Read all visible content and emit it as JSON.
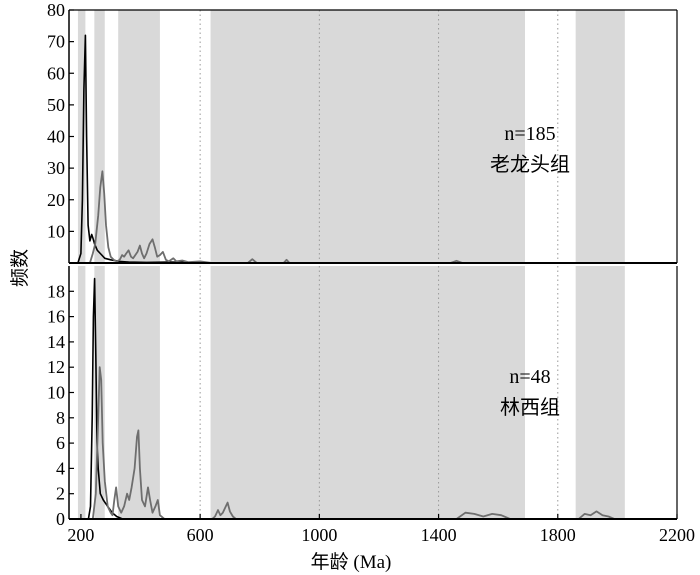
{
  "chart_data": {
    "type": "line",
    "xlabel": "年龄 (Ma)",
    "ylabel": "频数",
    "xlim": [
      160,
      2200
    ],
    "x_ticks": [
      200,
      600,
      1000,
      1400,
      1800,
      2200
    ],
    "grid": "vertical dotted lines at 600, 1000, 1400, 1800",
    "shaded_age_bands": [
      [
        190,
        215
      ],
      [
        245,
        280
      ],
      [
        325,
        465
      ],
      [
        635,
        1690
      ],
      [
        1860,
        2025
      ]
    ],
    "panels": [
      {
        "name": "top",
        "annotation_lines": [
          "n=185",
          "老龙头组"
        ],
        "ylim": [
          0,
          80
        ],
        "y_ticks": [
          10,
          20,
          30,
          40,
          50,
          60,
          70,
          80
        ],
        "series": [
          {
            "style": "black",
            "points": [
              [
                175,
                0
              ],
              [
                190,
                0
              ],
              [
                200,
                3
              ],
              [
                205,
                20
              ],
              [
                210,
                55
              ],
              [
                215,
                72
              ],
              [
                219,
                40
              ],
              [
                224,
                12
              ],
              [
                230,
                7
              ],
              [
                236,
                9
              ],
              [
                240,
                8
              ],
              [
                246,
                6
              ],
              [
                255,
                4
              ],
              [
                265,
                3
              ],
              [
                280,
                1.5
              ],
              [
                300,
                1
              ],
              [
                330,
                0.5
              ],
              [
                360,
                0.3
              ],
              [
                420,
                0.2
              ],
              [
                500,
                0.3
              ],
              [
                560,
                0.2
              ],
              [
                600,
                0.2
              ],
              [
                640,
                0
              ],
              [
                2200,
                0
              ]
            ]
          },
          {
            "style": "gray",
            "points": [
              [
                230,
                0
              ],
              [
                240,
                3
              ],
              [
                248,
                6
              ],
              [
                258,
                15
              ],
              [
                265,
                24
              ],
              [
                272,
                29
              ],
              [
                278,
                22
              ],
              [
                284,
                12
              ],
              [
                292,
                5
              ],
              [
                300,
                2
              ],
              [
                310,
                1
              ],
              [
                320,
                0.5
              ],
              [
                330,
                1
              ],
              [
                338,
                2.5
              ],
              [
                345,
                2
              ],
              [
                352,
                3
              ],
              [
                360,
                4
              ],
              [
                368,
                2
              ],
              [
                375,
                1.5
              ],
              [
                390,
                3.5
              ],
              [
                398,
                5.5
              ],
              [
                405,
                3
              ],
              [
                412,
                1.5
              ],
              [
                420,
                3
              ],
              [
                430,
                6
              ],
              [
                440,
                7.5
              ],
              [
                448,
                5
              ],
              [
                456,
                2
              ],
              [
                465,
                2.5
              ],
              [
                475,
                3.5
              ],
              [
                485,
                1
              ],
              [
                495,
                0.5
              ],
              [
                510,
                1.5
              ],
              [
                520,
                0.5
              ],
              [
                540,
                0.8
              ],
              [
                560,
                0.3
              ],
              [
                600,
                0.5
              ],
              [
                640,
                0
              ],
              [
                760,
                0
              ],
              [
                775,
                1.2
              ],
              [
                790,
                0
              ],
              [
                880,
                0
              ],
              [
                890,
                1
              ],
              [
                900,
                0
              ],
              [
                1440,
                0
              ],
              [
                1460,
                0.7
              ],
              [
                1480,
                0
              ],
              [
                2200,
                0
              ]
            ]
          }
        ]
      },
      {
        "name": "bottom",
        "annotation_lines": [
          "n=48",
          "林西组"
        ],
        "ylim": [
          0,
          20
        ],
        "y_ticks": [
          0,
          2,
          4,
          6,
          8,
          10,
          12,
          14,
          16,
          18
        ],
        "series": [
          {
            "style": "black",
            "points": [
              [
                175,
                0
              ],
              [
                225,
                0
              ],
              [
                232,
                1
              ],
              [
                238,
                8
              ],
              [
                242,
                16
              ],
              [
                246,
                19
              ],
              [
                250,
                13
              ],
              [
                254,
                6
              ],
              [
                258,
                4
              ],
              [
                265,
                2
              ],
              [
                275,
                1.5
              ],
              [
                290,
                1
              ],
              [
                305,
                0.5
              ],
              [
                320,
                0.2
              ],
              [
                340,
                0
              ],
              [
                2200,
                0
              ]
            ]
          },
          {
            "style": "gray",
            "points": [
              [
                240,
                0
              ],
              [
                250,
                2
              ],
              [
                258,
                8
              ],
              [
                263,
                12
              ],
              [
                268,
                11
              ],
              [
                273,
                6
              ],
              [
                280,
                3
              ],
              [
                290,
                1
              ],
              [
                300,
                0.5
              ],
              [
                306,
                0.3
              ],
              [
                312,
                1.5
              ],
              [
                318,
                2.5
              ],
              [
                325,
                1
              ],
              [
                335,
                0.5
              ],
              [
                345,
                1
              ],
              [
                355,
                2
              ],
              [
                362,
                1.5
              ],
              [
                370,
                2.5
              ],
              [
                380,
                4
              ],
              [
                388,
                6.5
              ],
              [
                393,
                7
              ],
              [
                398,
                4
              ],
              [
                405,
                1.5
              ],
              [
                415,
                1
              ],
              [
                425,
                2.5
              ],
              [
                432,
                1.5
              ],
              [
                440,
                0.5
              ],
              [
                450,
                1
              ],
              [
                458,
                1.5
              ],
              [
                465,
                0.3
              ],
              [
                480,
                0
              ],
              [
                640,
                0
              ],
              [
                650,
                0.2
              ],
              [
                660,
                0.7
              ],
              [
                668,
                0.3
              ],
              [
                676,
                0.5
              ],
              [
                686,
                1
              ],
              [
                692,
                1.3
              ],
              [
                700,
                0.6
              ],
              [
                710,
                0.2
              ],
              [
                720,
                0
              ],
              [
                1460,
                0
              ],
              [
                1490,
                0.5
              ],
              [
                1520,
                0.4
              ],
              [
                1550,
                0.2
              ],
              [
                1580,
                0.4
              ],
              [
                1610,
                0.3
              ],
              [
                1640,
                0
              ],
              [
                1870,
                0
              ],
              [
                1890,
                0.4
              ],
              [
                1910,
                0.3
              ],
              [
                1930,
                0.6
              ],
              [
                1950,
                0.3
              ],
              [
                1970,
                0.2
              ],
              [
                1990,
                0
              ],
              [
                2200,
                0
              ]
            ]
          }
        ]
      }
    ]
  }
}
